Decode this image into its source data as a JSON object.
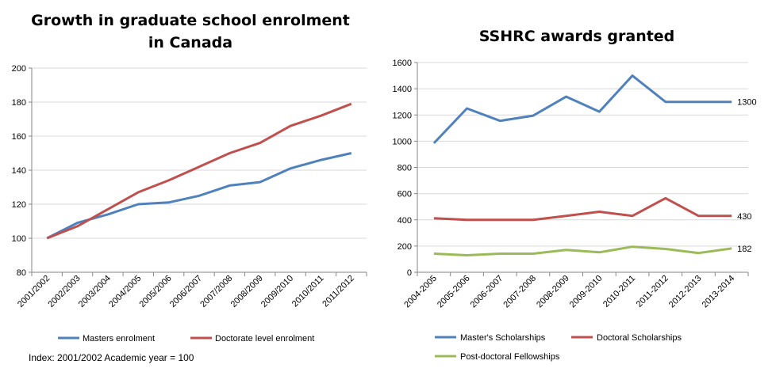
{
  "chart_data": [
    {
      "type": "line",
      "title": "Growth in graduate school enrolment",
      "title_line2": "in Canada",
      "categories": [
        "2001/2002",
        "2002/2003",
        "2003/2004",
        "2004/2005",
        "2005/2006",
        "2006/2007",
        "2007/2008",
        "2008/2009",
        "2009/2010",
        "2010/2011",
        "2011/2012"
      ],
      "ylim": [
        80,
        200
      ],
      "yticks": [
        80,
        100,
        120,
        140,
        160,
        180,
        200
      ],
      "grid": true,
      "legend": "bottom",
      "series": [
        {
          "name": "Masters enrolment",
          "color": "#4f81bd",
          "values": [
            100,
            109,
            114,
            120,
            121,
            125,
            131,
            133,
            141,
            146,
            150
          ]
        },
        {
          "name": "Doctorate level enrolment",
          "color": "#c0504d",
          "values": [
            100,
            107,
            117,
            127,
            134,
            142,
            150,
            156,
            166,
            172,
            179
          ]
        }
      ],
      "note": "Index: 2001/2002 Academic year = 100"
    },
    {
      "type": "line",
      "title": "SSHRC awards granted",
      "categories": [
        "2004-2005",
        "2005-2006",
        "2006-2007",
        "2007-2008",
        "2008-2009",
        "2009-2010",
        "2010-2011",
        "2011-2012",
        "2012-2013",
        "2013-2014"
      ],
      "ylim": [
        0,
        1600
      ],
      "yticks": [
        0,
        200,
        400,
        600,
        800,
        1000,
        1200,
        1400,
        1600
      ],
      "grid": true,
      "legend": "bottom",
      "series": [
        {
          "name": "Master's Scholarships",
          "color": "#4f81bd",
          "values": [
            985,
            1250,
            1155,
            1195,
            1340,
            1225,
            1500,
            1300,
            1300,
            1300
          ],
          "end_label": "1300"
        },
        {
          "name": "Doctoral Scholarships",
          "color": "#c0504d",
          "values": [
            412,
            400,
            400,
            400,
            430,
            462,
            430,
            565,
            430,
            430
          ],
          "end_label": "430"
        },
        {
          "name": "Post-doctoral Fellowships",
          "color": "#9bbb59",
          "values": [
            142,
            130,
            142,
            142,
            170,
            152,
            195,
            178,
            147,
            182
          ],
          "end_label": "182"
        }
      ]
    }
  ]
}
